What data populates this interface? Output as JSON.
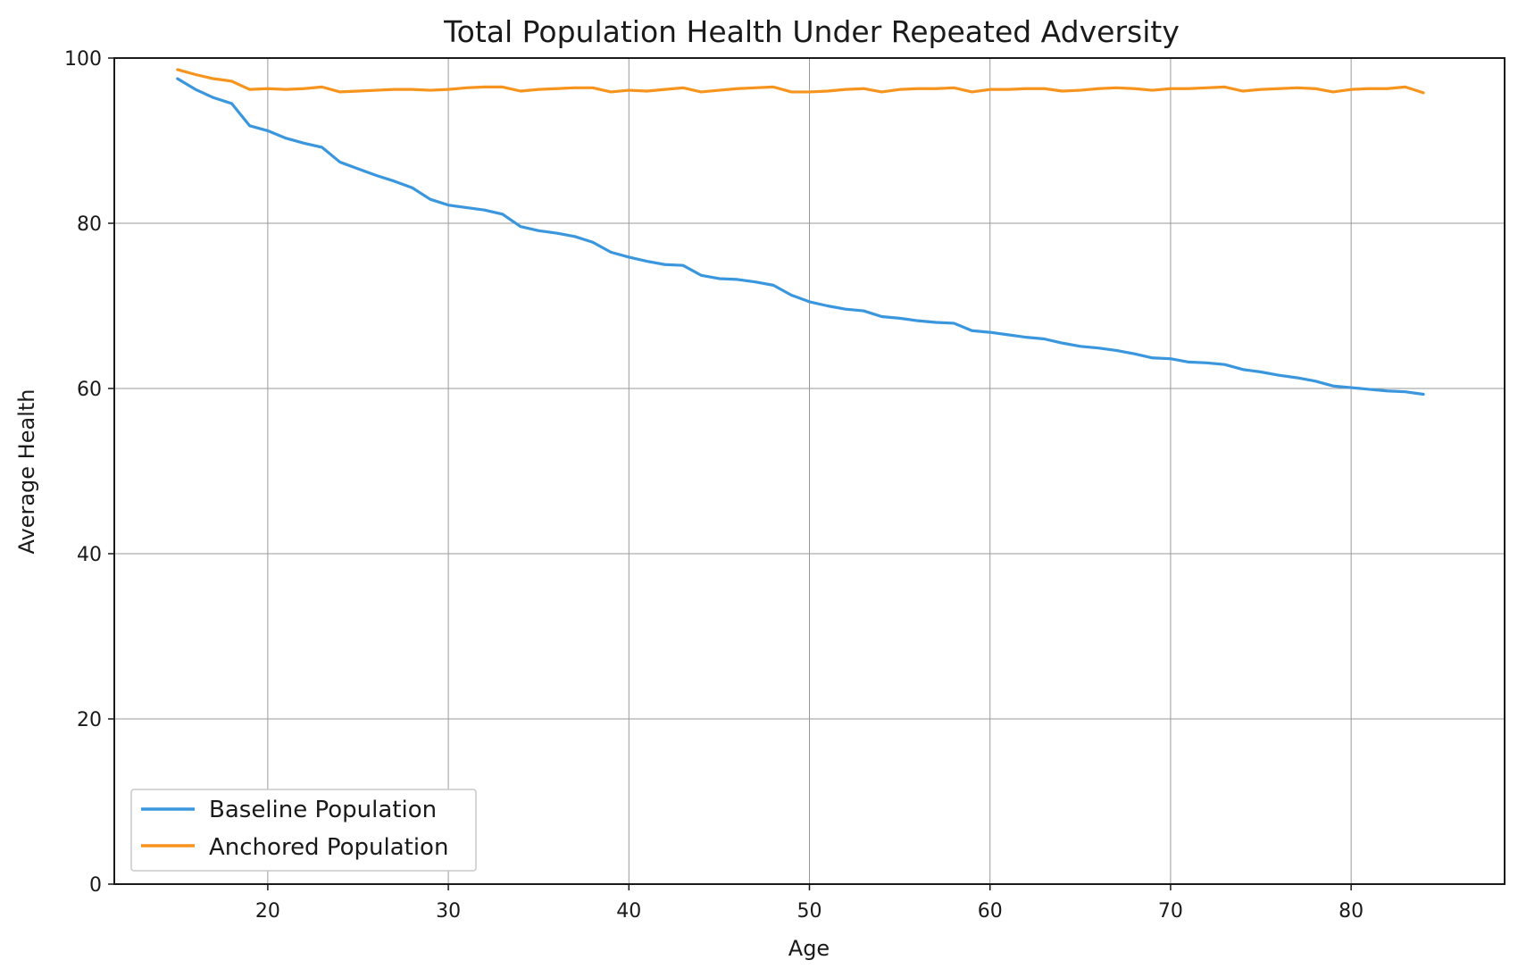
{
  "chart_data": {
    "type": "line",
    "title": "Total Population Health Under Repeated Adversity",
    "xlabel": "Age",
    "ylabel": "Average Health",
    "xlim": [
      11.5,
      88.5
    ],
    "ylim": [
      0,
      100
    ],
    "xticks": [
      20,
      30,
      40,
      50,
      60,
      70,
      80
    ],
    "yticks": [
      0,
      20,
      40,
      60,
      80,
      100
    ],
    "grid": true,
    "legend_position": "lower-left",
    "x": [
      15,
      16,
      17,
      18,
      19,
      20,
      21,
      22,
      23,
      24,
      25,
      26,
      27,
      28,
      29,
      30,
      31,
      32,
      33,
      34,
      35,
      36,
      37,
      38,
      39,
      40,
      41,
      42,
      43,
      44,
      45,
      46,
      47,
      48,
      49,
      50,
      51,
      52,
      53,
      54,
      55,
      56,
      57,
      58,
      59,
      60,
      61,
      62,
      63,
      64,
      65,
      66,
      67,
      68,
      69,
      70,
      71,
      72,
      73,
      74,
      75,
      76,
      77,
      78,
      79,
      80,
      81,
      82,
      83,
      84
    ],
    "series": [
      {
        "name": "Baseline Population",
        "color": "#3a96dd",
        "values": [
          97.5,
          96.2,
          95.2,
          94.5,
          91.8,
          91.2,
          90.3,
          89.7,
          89.2,
          87.4,
          86.6,
          85.8,
          85.1,
          84.3,
          82.9,
          82.2,
          81.9,
          81.6,
          81.1,
          79.6,
          79.1,
          78.8,
          78.4,
          77.7,
          76.5,
          75.9,
          75.4,
          75.0,
          74.9,
          73.7,
          73.3,
          73.2,
          72.9,
          72.5,
          71.3,
          70.5,
          70.0,
          69.6,
          69.4,
          68.7,
          68.5,
          68.2,
          68.0,
          67.9,
          67.0,
          66.8,
          66.5,
          66.2,
          66.0,
          65.5,
          65.1,
          64.9,
          64.6,
          64.2,
          63.7,
          63.6,
          63.2,
          63.1,
          62.9,
          62.3,
          62.0,
          61.6,
          61.3,
          60.9,
          60.3,
          60.1,
          59.9,
          59.7,
          59.6,
          59.3
        ]
      },
      {
        "name": "Anchored Population",
        "color": "#f7941d",
        "values": [
          98.6,
          98.0,
          97.5,
          97.2,
          96.2,
          96.3,
          96.2,
          96.3,
          96.5,
          95.9,
          96.0,
          96.1,
          96.2,
          96.2,
          96.1,
          96.2,
          96.4,
          96.5,
          96.5,
          96.0,
          96.2,
          96.3,
          96.4,
          96.4,
          95.9,
          96.1,
          96.0,
          96.2,
          96.4,
          95.9,
          96.1,
          96.3,
          96.4,
          96.5,
          95.9,
          95.9,
          96.0,
          96.2,
          96.3,
          95.9,
          96.2,
          96.3,
          96.3,
          96.4,
          95.9,
          96.2,
          96.2,
          96.3,
          96.3,
          96.0,
          96.1,
          96.3,
          96.4,
          96.3,
          96.1,
          96.3,
          96.3,
          96.4,
          96.5,
          96.0,
          96.2,
          96.3,
          96.4,
          96.3,
          95.9,
          96.2,
          96.3,
          96.3,
          96.5,
          95.8
        ]
      }
    ]
  }
}
